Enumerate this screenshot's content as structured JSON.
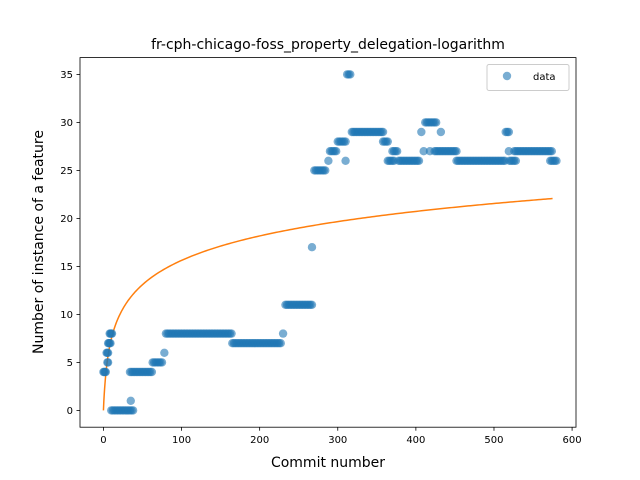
{
  "chart_data": {
    "type": "scatter",
    "title": "fr-cph-chicago-foss_property_delegation-logarithm",
    "xlabel": "Commit number",
    "ylabel": "Number of instance of a feature",
    "xlim": [
      -30,
      605
    ],
    "ylim": [
      -1.75,
      36.75
    ],
    "xticks": [
      0,
      100,
      200,
      300,
      400,
      500,
      600
    ],
    "yticks": [
      0,
      5,
      10,
      15,
      20,
      25,
      30,
      35
    ],
    "grid": false,
    "legend": {
      "position": "top-right",
      "entries": [
        "data"
      ]
    },
    "colors": {
      "data": "#1f77b4",
      "fit": "#ff7f0e"
    },
    "series": [
      {
        "name": "data",
        "type": "scatter",
        "segments": [
          [
            0,
            3,
            4
          ],
          [
            4,
            6,
            6
          ],
          [
            5,
            6,
            5
          ],
          [
            6,
            9,
            7
          ],
          [
            8,
            11,
            8
          ],
          [
            10,
            38,
            0
          ],
          [
            35,
            35,
            1
          ],
          [
            34,
            62,
            4
          ],
          [
            63,
            76,
            5
          ],
          [
            78,
            78,
            6
          ],
          [
            80,
            165,
            8
          ],
          [
            165,
            228,
            7
          ],
          [
            230,
            230,
            8
          ],
          [
            233,
            268,
            11
          ],
          [
            267,
            267,
            17
          ],
          [
            270,
            285,
            25
          ],
          [
            288,
            288,
            26
          ],
          [
            290,
            298,
            27
          ],
          [
            300,
            310,
            28
          ],
          [
            310,
            310,
            26
          ],
          [
            312,
            316,
            35
          ],
          [
            318,
            358,
            29
          ],
          [
            358,
            364,
            28
          ],
          [
            364,
            373,
            26
          ],
          [
            370,
            377,
            27
          ],
          [
            378,
            405,
            26
          ],
          [
            407,
            407,
            29
          ],
          [
            410,
            410,
            27
          ],
          [
            412,
            420,
            30
          ],
          [
            418,
            418,
            27
          ],
          [
            422,
            427,
            30
          ],
          [
            424,
            428,
            27
          ],
          [
            432,
            432,
            29
          ],
          [
            430,
            452,
            27
          ],
          [
            452,
            515,
            26
          ],
          [
            515,
            520,
            29
          ],
          [
            519,
            519,
            27
          ],
          [
            520,
            528,
            26
          ],
          [
            526,
            575,
            27
          ],
          [
            572,
            580,
            26
          ]
        ]
      },
      {
        "name": "fit",
        "type": "line",
        "formula": "y = 3.7 * ln(x + 1) - 1.45",
        "x_range": [
          0,
          577
        ]
      }
    ]
  }
}
